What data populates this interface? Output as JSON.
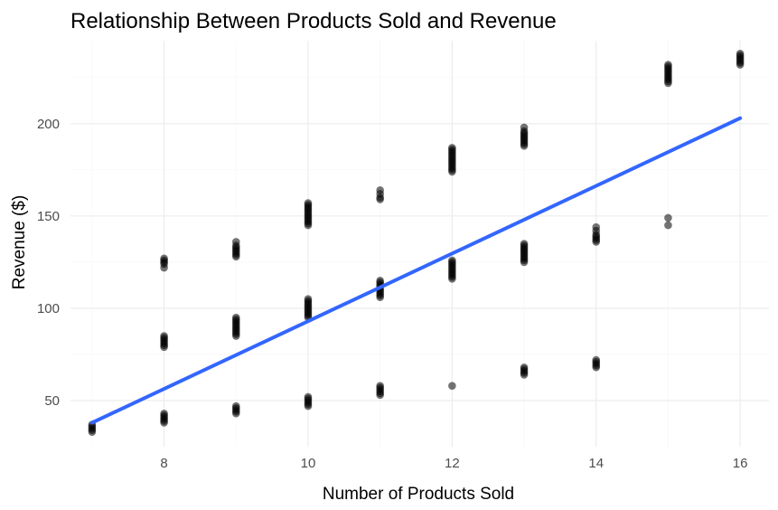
{
  "chart_data": {
    "type": "scatter",
    "title": "Relationship Between Products Sold and Revenue",
    "xlabel": "Number of Products Sold",
    "ylabel": "Revenue ($)",
    "xlim": [
      6.7,
      16.4
    ],
    "ylim": [
      25,
      245
    ],
    "x_ticks": [
      8,
      10,
      12,
      14,
      16
    ],
    "y_ticks": [
      50,
      100,
      150,
      200
    ],
    "grid": true,
    "legend": "none",
    "point_color": "#000000",
    "point_alpha": 0.55,
    "line_color": "#3366ff",
    "series": [
      {
        "type": "scatter",
        "points": [
          {
            "x": 7,
            "y": 33
          },
          {
            "x": 7,
            "y": 34
          },
          {
            "x": 7,
            "y": 35
          },
          {
            "x": 7,
            "y": 36
          },
          {
            "x": 7,
            "y": 37
          },
          {
            "x": 8,
            "y": 38
          },
          {
            "x": 8,
            "y": 39
          },
          {
            "x": 8,
            "y": 40
          },
          {
            "x": 8,
            "y": 41
          },
          {
            "x": 8,
            "y": 42
          },
          {
            "x": 8,
            "y": 43
          },
          {
            "x": 8,
            "y": 79
          },
          {
            "x": 8,
            "y": 80
          },
          {
            "x": 8,
            "y": 81
          },
          {
            "x": 8,
            "y": 82
          },
          {
            "x": 8,
            "y": 83
          },
          {
            "x": 8,
            "y": 84
          },
          {
            "x": 8,
            "y": 85
          },
          {
            "x": 8,
            "y": 122
          },
          {
            "x": 8,
            "y": 124
          },
          {
            "x": 8,
            "y": 125
          },
          {
            "x": 8,
            "y": 126
          },
          {
            "x": 8,
            "y": 127
          },
          {
            "x": 9,
            "y": 43
          },
          {
            "x": 9,
            "y": 44
          },
          {
            "x": 9,
            "y": 45
          },
          {
            "x": 9,
            "y": 46
          },
          {
            "x": 9,
            "y": 47
          },
          {
            "x": 9,
            "y": 85
          },
          {
            "x": 9,
            "y": 86
          },
          {
            "x": 9,
            "y": 87
          },
          {
            "x": 9,
            "y": 88
          },
          {
            "x": 9,
            "y": 89
          },
          {
            "x": 9,
            "y": 90
          },
          {
            "x": 9,
            "y": 91
          },
          {
            "x": 9,
            "y": 92
          },
          {
            "x": 9,
            "y": 93
          },
          {
            "x": 9,
            "y": 94
          },
          {
            "x": 9,
            "y": 95
          },
          {
            "x": 9,
            "y": 128
          },
          {
            "x": 9,
            "y": 129
          },
          {
            "x": 9,
            "y": 130
          },
          {
            "x": 9,
            "y": 131
          },
          {
            "x": 9,
            "y": 132
          },
          {
            "x": 9,
            "y": 133
          },
          {
            "x": 9,
            "y": 134
          },
          {
            "x": 9,
            "y": 136
          },
          {
            "x": 10,
            "y": 47
          },
          {
            "x": 10,
            "y": 48
          },
          {
            "x": 10,
            "y": 49
          },
          {
            "x": 10,
            "y": 50
          },
          {
            "x": 10,
            "y": 51
          },
          {
            "x": 10,
            "y": 52
          },
          {
            "x": 10,
            "y": 95
          },
          {
            "x": 10,
            "y": 96
          },
          {
            "x": 10,
            "y": 97
          },
          {
            "x": 10,
            "y": 98
          },
          {
            "x": 10,
            "y": 99
          },
          {
            "x": 10,
            "y": 100
          },
          {
            "x": 10,
            "y": 101
          },
          {
            "x": 10,
            "y": 102
          },
          {
            "x": 10,
            "y": 103
          },
          {
            "x": 10,
            "y": 104
          },
          {
            "x": 10,
            "y": 105
          },
          {
            "x": 10,
            "y": 145
          },
          {
            "x": 10,
            "y": 146
          },
          {
            "x": 10,
            "y": 147
          },
          {
            "x": 10,
            "y": 148
          },
          {
            "x": 10,
            "y": 149
          },
          {
            "x": 10,
            "y": 150
          },
          {
            "x": 10,
            "y": 151
          },
          {
            "x": 10,
            "y": 152
          },
          {
            "x": 10,
            "y": 153
          },
          {
            "x": 10,
            "y": 154
          },
          {
            "x": 10,
            "y": 155
          },
          {
            "x": 10,
            "y": 156
          },
          {
            "x": 10,
            "y": 157
          },
          {
            "x": 11,
            "y": 53
          },
          {
            "x": 11,
            "y": 54
          },
          {
            "x": 11,
            "y": 55
          },
          {
            "x": 11,
            "y": 56
          },
          {
            "x": 11,
            "y": 57
          },
          {
            "x": 11,
            "y": 58
          },
          {
            "x": 11,
            "y": 106
          },
          {
            "x": 11,
            "y": 107
          },
          {
            "x": 11,
            "y": 108
          },
          {
            "x": 11,
            "y": 109
          },
          {
            "x": 11,
            "y": 110
          },
          {
            "x": 11,
            "y": 111
          },
          {
            "x": 11,
            "y": 112
          },
          {
            "x": 11,
            "y": 113
          },
          {
            "x": 11,
            "y": 114
          },
          {
            "x": 11,
            "y": 115
          },
          {
            "x": 11,
            "y": 159
          },
          {
            "x": 11,
            "y": 160
          },
          {
            "x": 11,
            "y": 162
          },
          {
            "x": 11,
            "y": 164
          },
          {
            "x": 12,
            "y": 58
          },
          {
            "x": 12,
            "y": 116
          },
          {
            "x": 12,
            "y": 117
          },
          {
            "x": 12,
            "y": 118
          },
          {
            "x": 12,
            "y": 119
          },
          {
            "x": 12,
            "y": 120
          },
          {
            "x": 12,
            "y": 121
          },
          {
            "x": 12,
            "y": 122
          },
          {
            "x": 12,
            "y": 123
          },
          {
            "x": 12,
            "y": 124
          },
          {
            "x": 12,
            "y": 125
          },
          {
            "x": 12,
            "y": 126
          },
          {
            "x": 12,
            "y": 174
          },
          {
            "x": 12,
            "y": 175
          },
          {
            "x": 12,
            "y": 176
          },
          {
            "x": 12,
            "y": 177
          },
          {
            "x": 12,
            "y": 178
          },
          {
            "x": 12,
            "y": 179
          },
          {
            "x": 12,
            "y": 180
          },
          {
            "x": 12,
            "y": 181
          },
          {
            "x": 12,
            "y": 182
          },
          {
            "x": 12,
            "y": 183
          },
          {
            "x": 12,
            "y": 184
          },
          {
            "x": 12,
            "y": 185
          },
          {
            "x": 12,
            "y": 186
          },
          {
            "x": 12,
            "y": 187
          },
          {
            "x": 13,
            "y": 64
          },
          {
            "x": 13,
            "y": 65
          },
          {
            "x": 13,
            "y": 66
          },
          {
            "x": 13,
            "y": 67
          },
          {
            "x": 13,
            "y": 68
          },
          {
            "x": 13,
            "y": 125
          },
          {
            "x": 13,
            "y": 126
          },
          {
            "x": 13,
            "y": 127
          },
          {
            "x": 13,
            "y": 128
          },
          {
            "x": 13,
            "y": 129
          },
          {
            "x": 13,
            "y": 130
          },
          {
            "x": 13,
            "y": 131
          },
          {
            "x": 13,
            "y": 132
          },
          {
            "x": 13,
            "y": 133
          },
          {
            "x": 13,
            "y": 134
          },
          {
            "x": 13,
            "y": 135
          },
          {
            "x": 13,
            "y": 188
          },
          {
            "x": 13,
            "y": 189
          },
          {
            "x": 13,
            "y": 190
          },
          {
            "x": 13,
            "y": 191
          },
          {
            "x": 13,
            "y": 192
          },
          {
            "x": 13,
            "y": 193
          },
          {
            "x": 13,
            "y": 194
          },
          {
            "x": 13,
            "y": 195
          },
          {
            "x": 13,
            "y": 196
          },
          {
            "x": 13,
            "y": 198
          },
          {
            "x": 14,
            "y": 68
          },
          {
            "x": 14,
            "y": 69
          },
          {
            "x": 14,
            "y": 70
          },
          {
            "x": 14,
            "y": 71
          },
          {
            "x": 14,
            "y": 72
          },
          {
            "x": 14,
            "y": 136
          },
          {
            "x": 14,
            "y": 137
          },
          {
            "x": 14,
            "y": 138
          },
          {
            "x": 14,
            "y": 139
          },
          {
            "x": 14,
            "y": 140
          },
          {
            "x": 14,
            "y": 142
          },
          {
            "x": 14,
            "y": 144
          },
          {
            "x": 15,
            "y": 145
          },
          {
            "x": 15,
            "y": 149
          },
          {
            "x": 15,
            "y": 222
          },
          {
            "x": 15,
            "y": 223
          },
          {
            "x": 15,
            "y": 224
          },
          {
            "x": 15,
            "y": 225
          },
          {
            "x": 15,
            "y": 226
          },
          {
            "x": 15,
            "y": 227
          },
          {
            "x": 15,
            "y": 228
          },
          {
            "x": 15,
            "y": 229
          },
          {
            "x": 15,
            "y": 230
          },
          {
            "x": 15,
            "y": 231
          },
          {
            "x": 15,
            "y": 232
          },
          {
            "x": 16,
            "y": 232
          },
          {
            "x": 16,
            "y": 233
          },
          {
            "x": 16,
            "y": 234
          },
          {
            "x": 16,
            "y": 235
          },
          {
            "x": 16,
            "y": 236
          },
          {
            "x": 16,
            "y": 237
          },
          {
            "x": 16,
            "y": 238
          }
        ]
      },
      {
        "type": "line",
        "fit": "linear",
        "x": [
          7,
          16
        ],
        "y": [
          38,
          203
        ]
      }
    ]
  }
}
